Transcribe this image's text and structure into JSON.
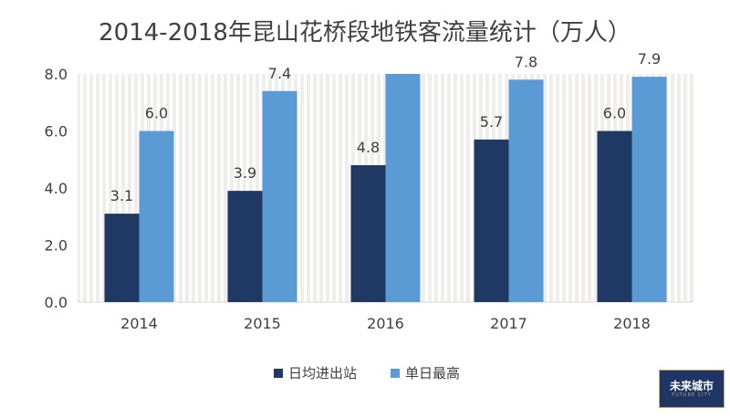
{
  "chart_data": {
    "type": "bar",
    "title": "2014-2018年昆山花桥段地铁客流量统计（万人）",
    "categories": [
      "2014",
      "2015",
      "2016",
      "2017",
      "2018"
    ],
    "series": [
      {
        "name": "日均进出站",
        "values": [
          3.1,
          3.9,
          4.8,
          5.7,
          6.0
        ],
        "color": "#1f3864",
        "labels": [
          "3.1",
          "3.9",
          "4.8",
          "5.7",
          "6.0"
        ]
      },
      {
        "name": "单日最高",
        "values": [
          6.0,
          7.4,
          8.0,
          7.8,
          7.9
        ],
        "color": "#5b9bd5",
        "labels": [
          "6.0",
          "7.4",
          "",
          "7.8",
          "7.9"
        ]
      }
    ],
    "y_ticks": [
      "0.0",
      "2.0",
      "4.0",
      "6.0",
      "8.0"
    ],
    "ylim": [
      0,
      8
    ],
    "legend_position": "bottom",
    "grid": "vertical-stripes"
  },
  "watermark": {
    "text": "未来城市",
    "sub": "FUTURE CITY"
  }
}
